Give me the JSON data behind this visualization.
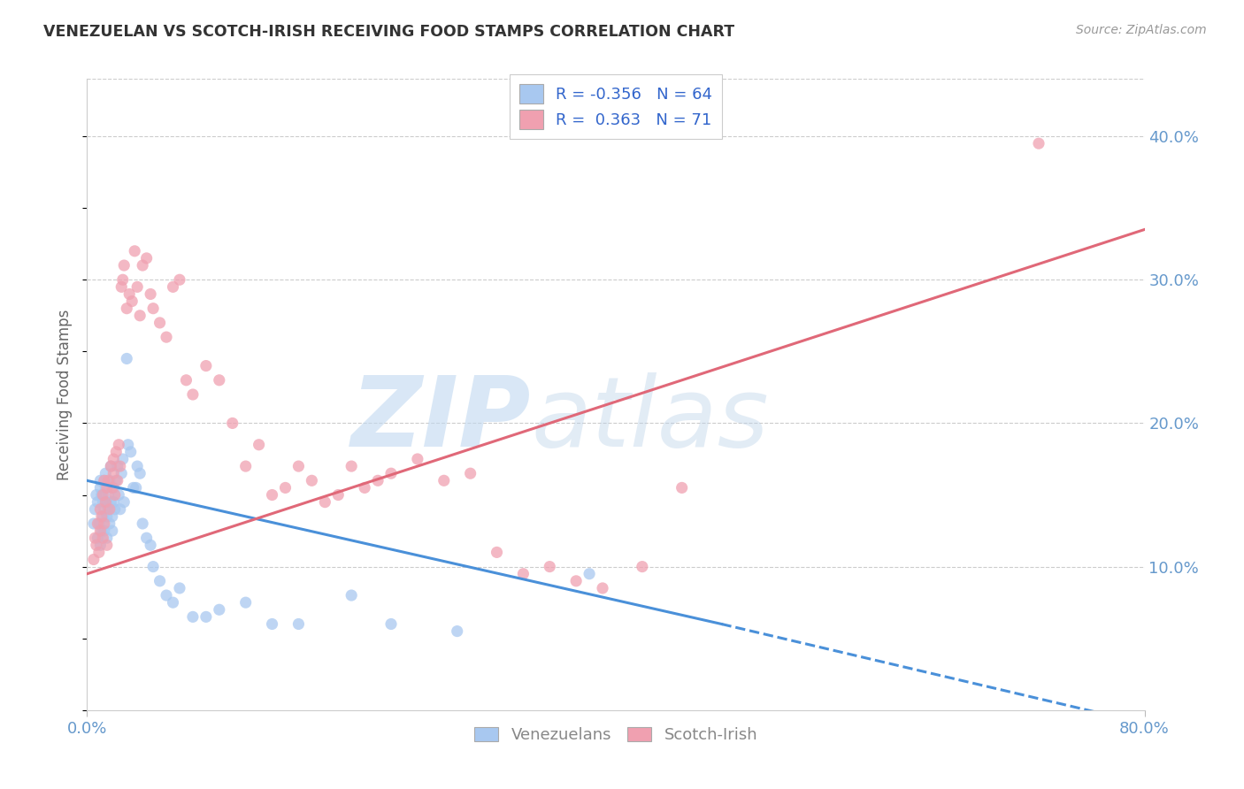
{
  "title": "VENEZUELAN VS SCOTCH-IRISH RECEIVING FOOD STAMPS CORRELATION CHART",
  "source": "Source: ZipAtlas.com",
  "ylabel": "Receiving Food Stamps",
  "xlim": [
    0.0,
    0.8
  ],
  "ylim": [
    0.0,
    0.44
  ],
  "y_ticks_right": [
    0.1,
    0.2,
    0.3,
    0.4
  ],
  "y_tick_labels_right": [
    "10.0%",
    "20.0%",
    "30.0%",
    "40.0%"
  ],
  "blue_R": -0.356,
  "blue_N": 64,
  "pink_R": 0.363,
  "pink_N": 71,
  "blue_color": "#a8c8f0",
  "pink_color": "#f0a0b0",
  "blue_line_color": "#4a90d9",
  "pink_line_color": "#e06878",
  "watermark": "ZIPatlas",
  "watermark_color": "#c8e4f8",
  "legend_label_blue": "Venezuelans",
  "legend_label_pink": "Scotch-Irish",
  "background_color": "#ffffff",
  "grid_color": "#cccccc",
  "title_color": "#333333",
  "axis_label_color": "#6699cc",
  "blue_line_x0": 0.0,
  "blue_line_y0": 0.16,
  "blue_line_x1_solid": 0.48,
  "blue_line_y1_solid": 0.06,
  "blue_line_x1_dash": 0.78,
  "blue_line_y1_dash": -0.005,
  "pink_line_x0": 0.0,
  "pink_line_y0": 0.095,
  "pink_line_x1": 0.8,
  "pink_line_y1": 0.335,
  "blue_scatter_x": [
    0.005,
    0.006,
    0.007,
    0.008,
    0.008,
    0.009,
    0.01,
    0.01,
    0.01,
    0.011,
    0.011,
    0.012,
    0.012,
    0.013,
    0.013,
    0.013,
    0.014,
    0.014,
    0.015,
    0.015,
    0.015,
    0.016,
    0.016,
    0.017,
    0.017,
    0.018,
    0.018,
    0.019,
    0.019,
    0.02,
    0.02,
    0.021,
    0.022,
    0.023,
    0.024,
    0.025,
    0.026,
    0.027,
    0.028,
    0.03,
    0.031,
    0.033,
    0.035,
    0.037,
    0.038,
    0.04,
    0.042,
    0.045,
    0.048,
    0.05,
    0.055,
    0.06,
    0.065,
    0.07,
    0.08,
    0.09,
    0.1,
    0.12,
    0.14,
    0.16,
    0.2,
    0.23,
    0.28,
    0.38
  ],
  "blue_scatter_y": [
    0.13,
    0.14,
    0.15,
    0.12,
    0.145,
    0.13,
    0.155,
    0.16,
    0.115,
    0.15,
    0.125,
    0.145,
    0.135,
    0.16,
    0.14,
    0.125,
    0.155,
    0.165,
    0.145,
    0.135,
    0.12,
    0.15,
    0.14,
    0.16,
    0.13,
    0.145,
    0.17,
    0.135,
    0.125,
    0.155,
    0.145,
    0.14,
    0.16,
    0.17,
    0.15,
    0.14,
    0.165,
    0.175,
    0.145,
    0.245,
    0.185,
    0.18,
    0.155,
    0.155,
    0.17,
    0.165,
    0.13,
    0.12,
    0.115,
    0.1,
    0.09,
    0.08,
    0.075,
    0.085,
    0.065,
    0.065,
    0.07,
    0.075,
    0.06,
    0.06,
    0.08,
    0.06,
    0.055,
    0.095
  ],
  "pink_scatter_x": [
    0.005,
    0.006,
    0.007,
    0.008,
    0.009,
    0.01,
    0.01,
    0.011,
    0.012,
    0.012,
    0.013,
    0.013,
    0.014,
    0.015,
    0.015,
    0.016,
    0.017,
    0.018,
    0.019,
    0.02,
    0.02,
    0.021,
    0.022,
    0.023,
    0.024,
    0.025,
    0.026,
    0.027,
    0.028,
    0.03,
    0.032,
    0.034,
    0.036,
    0.038,
    0.04,
    0.042,
    0.045,
    0.048,
    0.05,
    0.055,
    0.06,
    0.065,
    0.07,
    0.075,
    0.08,
    0.09,
    0.1,
    0.11,
    0.12,
    0.13,
    0.14,
    0.15,
    0.16,
    0.17,
    0.18,
    0.19,
    0.2,
    0.21,
    0.22,
    0.23,
    0.25,
    0.27,
    0.29,
    0.31,
    0.33,
    0.35,
    0.37,
    0.39,
    0.42,
    0.45,
    0.72
  ],
  "pink_scatter_y": [
    0.105,
    0.12,
    0.115,
    0.13,
    0.11,
    0.125,
    0.14,
    0.135,
    0.15,
    0.12,
    0.16,
    0.13,
    0.145,
    0.155,
    0.115,
    0.16,
    0.14,
    0.17,
    0.155,
    0.165,
    0.175,
    0.15,
    0.18,
    0.16,
    0.185,
    0.17,
    0.295,
    0.3,
    0.31,
    0.28,
    0.29,
    0.285,
    0.32,
    0.295,
    0.275,
    0.31,
    0.315,
    0.29,
    0.28,
    0.27,
    0.26,
    0.295,
    0.3,
    0.23,
    0.22,
    0.24,
    0.23,
    0.2,
    0.17,
    0.185,
    0.15,
    0.155,
    0.17,
    0.16,
    0.145,
    0.15,
    0.17,
    0.155,
    0.16,
    0.165,
    0.175,
    0.16,
    0.165,
    0.11,
    0.095,
    0.1,
    0.09,
    0.085,
    0.1,
    0.155,
    0.395
  ]
}
